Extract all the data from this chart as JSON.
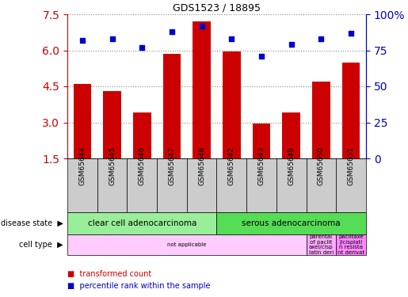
{
  "title": "GDS1523 / 18895",
  "samples": [
    "GSM65644",
    "GSM65645",
    "GSM65646",
    "GSM65647",
    "GSM65648",
    "GSM65642",
    "GSM65643",
    "GSM65649",
    "GSM65650",
    "GSM65651"
  ],
  "bar_values": [
    4.6,
    4.3,
    3.4,
    5.85,
    7.2,
    5.95,
    2.95,
    3.4,
    4.7,
    5.5
  ],
  "scatter_values": [
    82,
    83,
    77,
    88,
    92,
    83,
    71,
    79,
    83,
    87
  ],
  "bar_color": "#cc0000",
  "scatter_color": "#0000cc",
  "ylim_left": [
    1.5,
    7.5
  ],
  "ylim_right": [
    0,
    100
  ],
  "yticks_left": [
    1.5,
    3.0,
    4.5,
    6.0,
    7.5
  ],
  "yticks_right": [
    0,
    25,
    50,
    75,
    100
  ],
  "disease_state_groups": [
    {
      "label": "clear cell adenocarcinoma",
      "start": 0,
      "end": 5,
      "color": "#99ee99"
    },
    {
      "label": "serous adenocarcinoma",
      "start": 5,
      "end": 10,
      "color": "#55dd55"
    }
  ],
  "cell_type_groups": [
    {
      "label": "not applicable",
      "start": 0,
      "end": 8,
      "color": "#ffccff"
    },
    {
      "label": "parental\nof paclit\naxel/cisp\nlatin deri",
      "start": 8,
      "end": 9,
      "color": "#ffaaff"
    },
    {
      "label": "paclitaxe\nl/cisplati\nn resista\nnt derivat",
      "start": 9,
      "end": 10,
      "color": "#ff88ff"
    }
  ],
  "bar_color_hex": "#cc0000",
  "scatter_color_hex": "#0000cc",
  "left_label_color": "#cc0000",
  "right_label_color": "#0000cc",
  "background_color": "#ffffff",
  "plot_bg_color": "#ffffff",
  "grid_color": "#888888",
  "tick_bg_color": "#cccccc"
}
